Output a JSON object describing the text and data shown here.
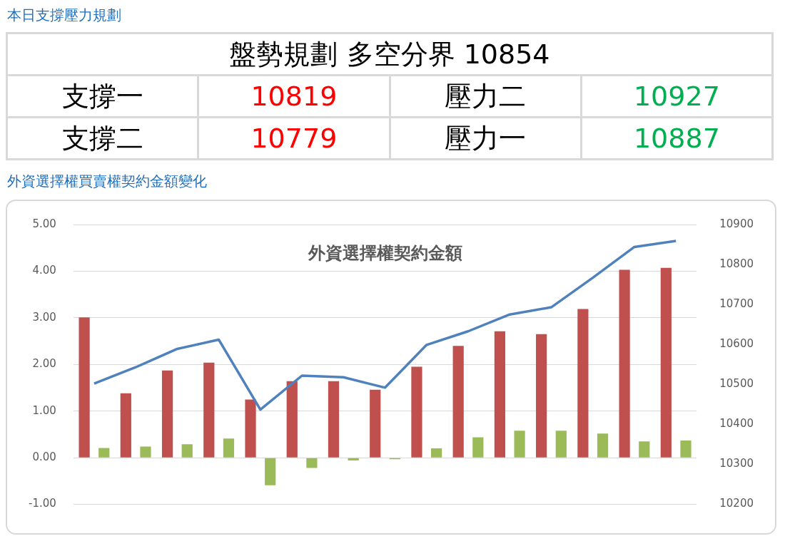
{
  "chart_data": [
    {
      "type": "other",
      "title": "本日支撐壓力規劃",
      "subtitle": "盤勢規劃 多空分界 10854",
      "annotations": [
        "支撐一",
        "10819",
        "壓力二",
        "10927",
        "支撐二",
        "10779",
        "壓力一",
        "10887"
      ]
    },
    {
      "type": "bar",
      "title": "外資選擇權契約金額",
      "subtitle": "外資選擇權買賣權契約金額變化",
      "categories": [
        null,
        null,
        null,
        null,
        null,
        null,
        null,
        null,
        null,
        null,
        null,
        null,
        null,
        null,
        null
      ],
      "series": [
        {
          "color": "#c0504d",
          "values": [
            3.01,
            1.38,
            1.87,
            2.04,
            1.25,
            1.64,
            1.64,
            1.46,
            1.95,
            2.4,
            2.71,
            2.65,
            3.19,
            4.03,
            4.07
          ]
        },
        {
          "color": "#9bbb59",
          "values": [
            0.21,
            0.24,
            0.29,
            0.41,
            -0.59,
            -0.22,
            -0.06,
            -0.03,
            0.2,
            0.44,
            0.58,
            0.58,
            0.52,
            0.35,
            0.37
          ]
        },
        {
          "type": "line",
          "axis": "y2",
          "color": "#4f81bd",
          "values": [
            10502,
            10543,
            10589,
            10612,
            10437,
            10522,
            10518,
            10492,
            10599,
            10633,
            10675,
            10693,
            10767,
            10844,
            10859
          ]
        }
      ],
      "ylim": [
        -1,
        5
      ],
      "yticks": [
        {
          "value": -1,
          "label": "-1.00"
        },
        {
          "value": 0,
          "label": "0.00"
        },
        {
          "value": 1,
          "label": "1.00"
        },
        {
          "value": 2,
          "label": "2.00"
        },
        {
          "value": 3,
          "label": "3.00"
        },
        {
          "value": 4,
          "label": "4.00"
        },
        {
          "value": 5,
          "label": "5.00"
        }
      ],
      "y2lim": [
        10200,
        10900
      ],
      "y2ticks": [
        10200,
        10300,
        10400,
        10500,
        10600,
        10700,
        10800,
        10900
      ],
      "grid": "y",
      "legend": false,
      "marker": "none",
      "line_style": "solid"
    }
  ]
}
